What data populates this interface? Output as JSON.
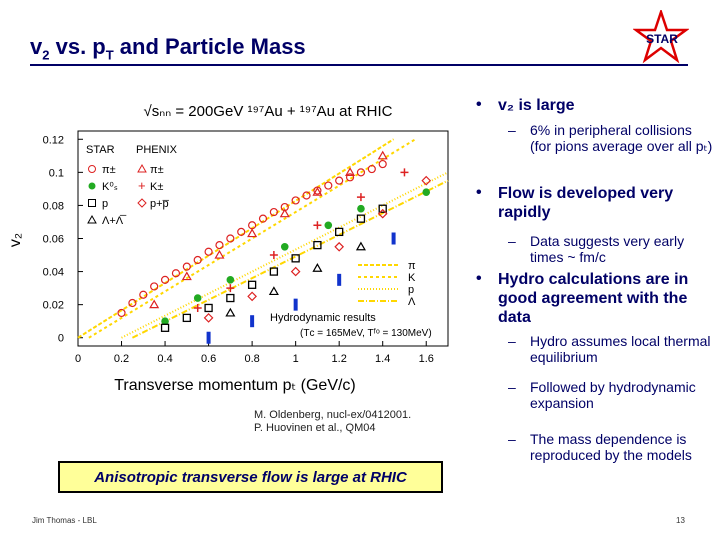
{
  "slide": {
    "title": {
      "a": "v",
      "a_sub": "2",
      "b": " vs. p",
      "b_sub": "T",
      "c": " and Particle Mass"
    },
    "logo_text": "STAR",
    "reference": {
      "line1": "M. Oldenberg, nucl-ex/0412001.",
      "line2": "P. Huovinen et al., QM04"
    },
    "banner": "Anisotropic transverse flow is large at RHIC",
    "footer_left": "Jim Thomas - LBL",
    "footer_right": "13",
    "bullets": [
      {
        "text": "v₂ is large",
        "subs": [
          "6% in peripheral collisions (for pions average over all pₜ)"
        ]
      },
      {
        "text": "Flow is developed very rapidly",
        "subs": [
          "Data suggests very early times ~ fm/c"
        ]
      },
      {
        "text": "Hydro calculations are in good agreement with the data",
        "subs": [
          "Hydro assumes local thermal equilibrium",
          "Followed by hydrodynamic expansion",
          "The mass dependence is reproduced by the models"
        ]
      }
    ]
  },
  "chart_data": {
    "type": "scatter",
    "title": "√sₙₙ = 200GeV ¹⁹⁷Au + ¹⁹⁷Au at RHIC",
    "xlabel": "Transverse momentum pₜ (GeV/c)",
    "ylabel": "v₂",
    "xlim": [
      0,
      1.7
    ],
    "ylim": [
      -0.005,
      0.125
    ],
    "xticks": [
      "0",
      "0.2",
      "0.4",
      "0.6",
      "0.8",
      "1",
      "1.2",
      "1.4",
      "1.6"
    ],
    "xtick_values": [
      0,
      0.2,
      0.4,
      0.6,
      0.8,
      1.0,
      1.2,
      1.4,
      1.6
    ],
    "yticks": [
      "0",
      "0.02",
      "0.04",
      "0.06",
      "0.08",
      "0.1",
      "0.12"
    ],
    "ytick_values": [
      0,
      0.02,
      0.04,
      0.06,
      0.08,
      0.1,
      0.12
    ],
    "legend_headers": [
      "STAR",
      "PHENIX"
    ],
    "legend_star": [
      "π±",
      "K⁰ₛ",
      "p",
      "Λ+Λ̅"
    ],
    "legend_phenix": [
      "π±",
      "K±",
      "p+p̅"
    ],
    "hydro_legend": {
      "labels": [
        "π",
        "K",
        "p",
        "Λ"
      ],
      "title": "Hydrodynamic results",
      "params": "(Tᴄ = 165MeV, Tᶠᵒ = 130MeV)"
    },
    "series": [
      {
        "name": "STAR pi",
        "marker": "circle-open",
        "color": "#dd2222",
        "x": [
          0.2,
          0.25,
          0.3,
          0.35,
          0.4,
          0.45,
          0.5,
          0.55,
          0.6,
          0.65,
          0.7,
          0.75,
          0.8,
          0.85,
          0.9,
          0.95,
          1.0,
          1.05,
          1.1,
          1.15,
          1.2,
          1.25,
          1.3,
          1.35,
          1.4
        ],
        "y": [
          0.015,
          0.021,
          0.026,
          0.031,
          0.035,
          0.039,
          0.043,
          0.047,
          0.052,
          0.056,
          0.06,
          0.064,
          0.068,
          0.072,
          0.076,
          0.079,
          0.083,
          0.086,
          0.089,
          0.092,
          0.095,
          0.097,
          0.1,
          0.102,
          0.105
        ]
      },
      {
        "name": "STAR K0s",
        "marker": "dot",
        "color": "#22aa22",
        "x": [
          0.4,
          0.55,
          0.7,
          0.95,
          1.15,
          1.3,
          1.6
        ],
        "y": [
          0.01,
          0.024,
          0.035,
          0.055,
          0.068,
          0.078,
          0.088
        ]
      },
      {
        "name": "STAR p",
        "marker": "square-open",
        "color": "#000000",
        "x": [
          0.4,
          0.5,
          0.6,
          0.7,
          0.8,
          0.9,
          1.0,
          1.1,
          1.2,
          1.3,
          1.4
        ],
        "y": [
          0.006,
          0.012,
          0.018,
          0.024,
          0.032,
          0.04,
          0.048,
          0.056,
          0.064,
          0.072,
          0.078
        ]
      },
      {
        "name": "STAR Lambda",
        "marker": "triangle-open",
        "color": "#000000",
        "x": [
          0.7,
          0.9,
          1.1,
          1.3
        ],
        "y": [
          0.015,
          0.028,
          0.042,
          0.055
        ]
      },
      {
        "name": "PHENIX pi",
        "marker": "triangle-open",
        "color": "#dd2222",
        "x": [
          0.35,
          0.5,
          0.65,
          0.8,
          0.95,
          1.1,
          1.25,
          1.4
        ],
        "y": [
          0.02,
          0.037,
          0.05,
          0.063,
          0.075,
          0.088,
          0.1,
          0.11
        ]
      },
      {
        "name": "PHENIX K",
        "marker": "plus",
        "color": "#dd2222",
        "x": [
          0.55,
          0.7,
          0.9,
          1.1,
          1.3,
          1.5
        ],
        "y": [
          0.018,
          0.03,
          0.05,
          0.068,
          0.085,
          0.1
        ]
      },
      {
        "name": "PHENIX p",
        "marker": "diamond-open",
        "color": "#dd2222",
        "x": [
          0.6,
          0.8,
          1.0,
          1.2,
          1.4,
          1.6
        ],
        "y": [
          0.012,
          0.025,
          0.04,
          0.055,
          0.075,
          0.095
        ]
      },
      {
        "name": "PHENIX extra",
        "marker": "cross-blue",
        "color": "#1133cc",
        "x": [
          0.6,
          0.8,
          1.0,
          1.2,
          1.45
        ],
        "y": [
          0.0,
          0.01,
          0.02,
          0.035,
          0.06
        ]
      }
    ],
    "hydro_lines": [
      {
        "name": "pi",
        "x": [
          0.0,
          1.45
        ],
        "y": [
          0.0,
          0.12
        ]
      },
      {
        "name": "K",
        "x": [
          0.05,
          1.55
        ],
        "y": [
          0.0,
          0.12
        ]
      },
      {
        "name": "p",
        "x": [
          0.2,
          1.7
        ],
        "y": [
          0.0,
          0.1
        ]
      },
      {
        "name": "Lambda",
        "x": [
          0.25,
          1.7
        ],
        "y": [
          0.0,
          0.095
        ]
      }
    ],
    "colors": {
      "pi": "#dd2222",
      "K": "#22aa22",
      "p": "#000000",
      "blue": "#1133cc",
      "hydro": "#ffd700"
    }
  }
}
